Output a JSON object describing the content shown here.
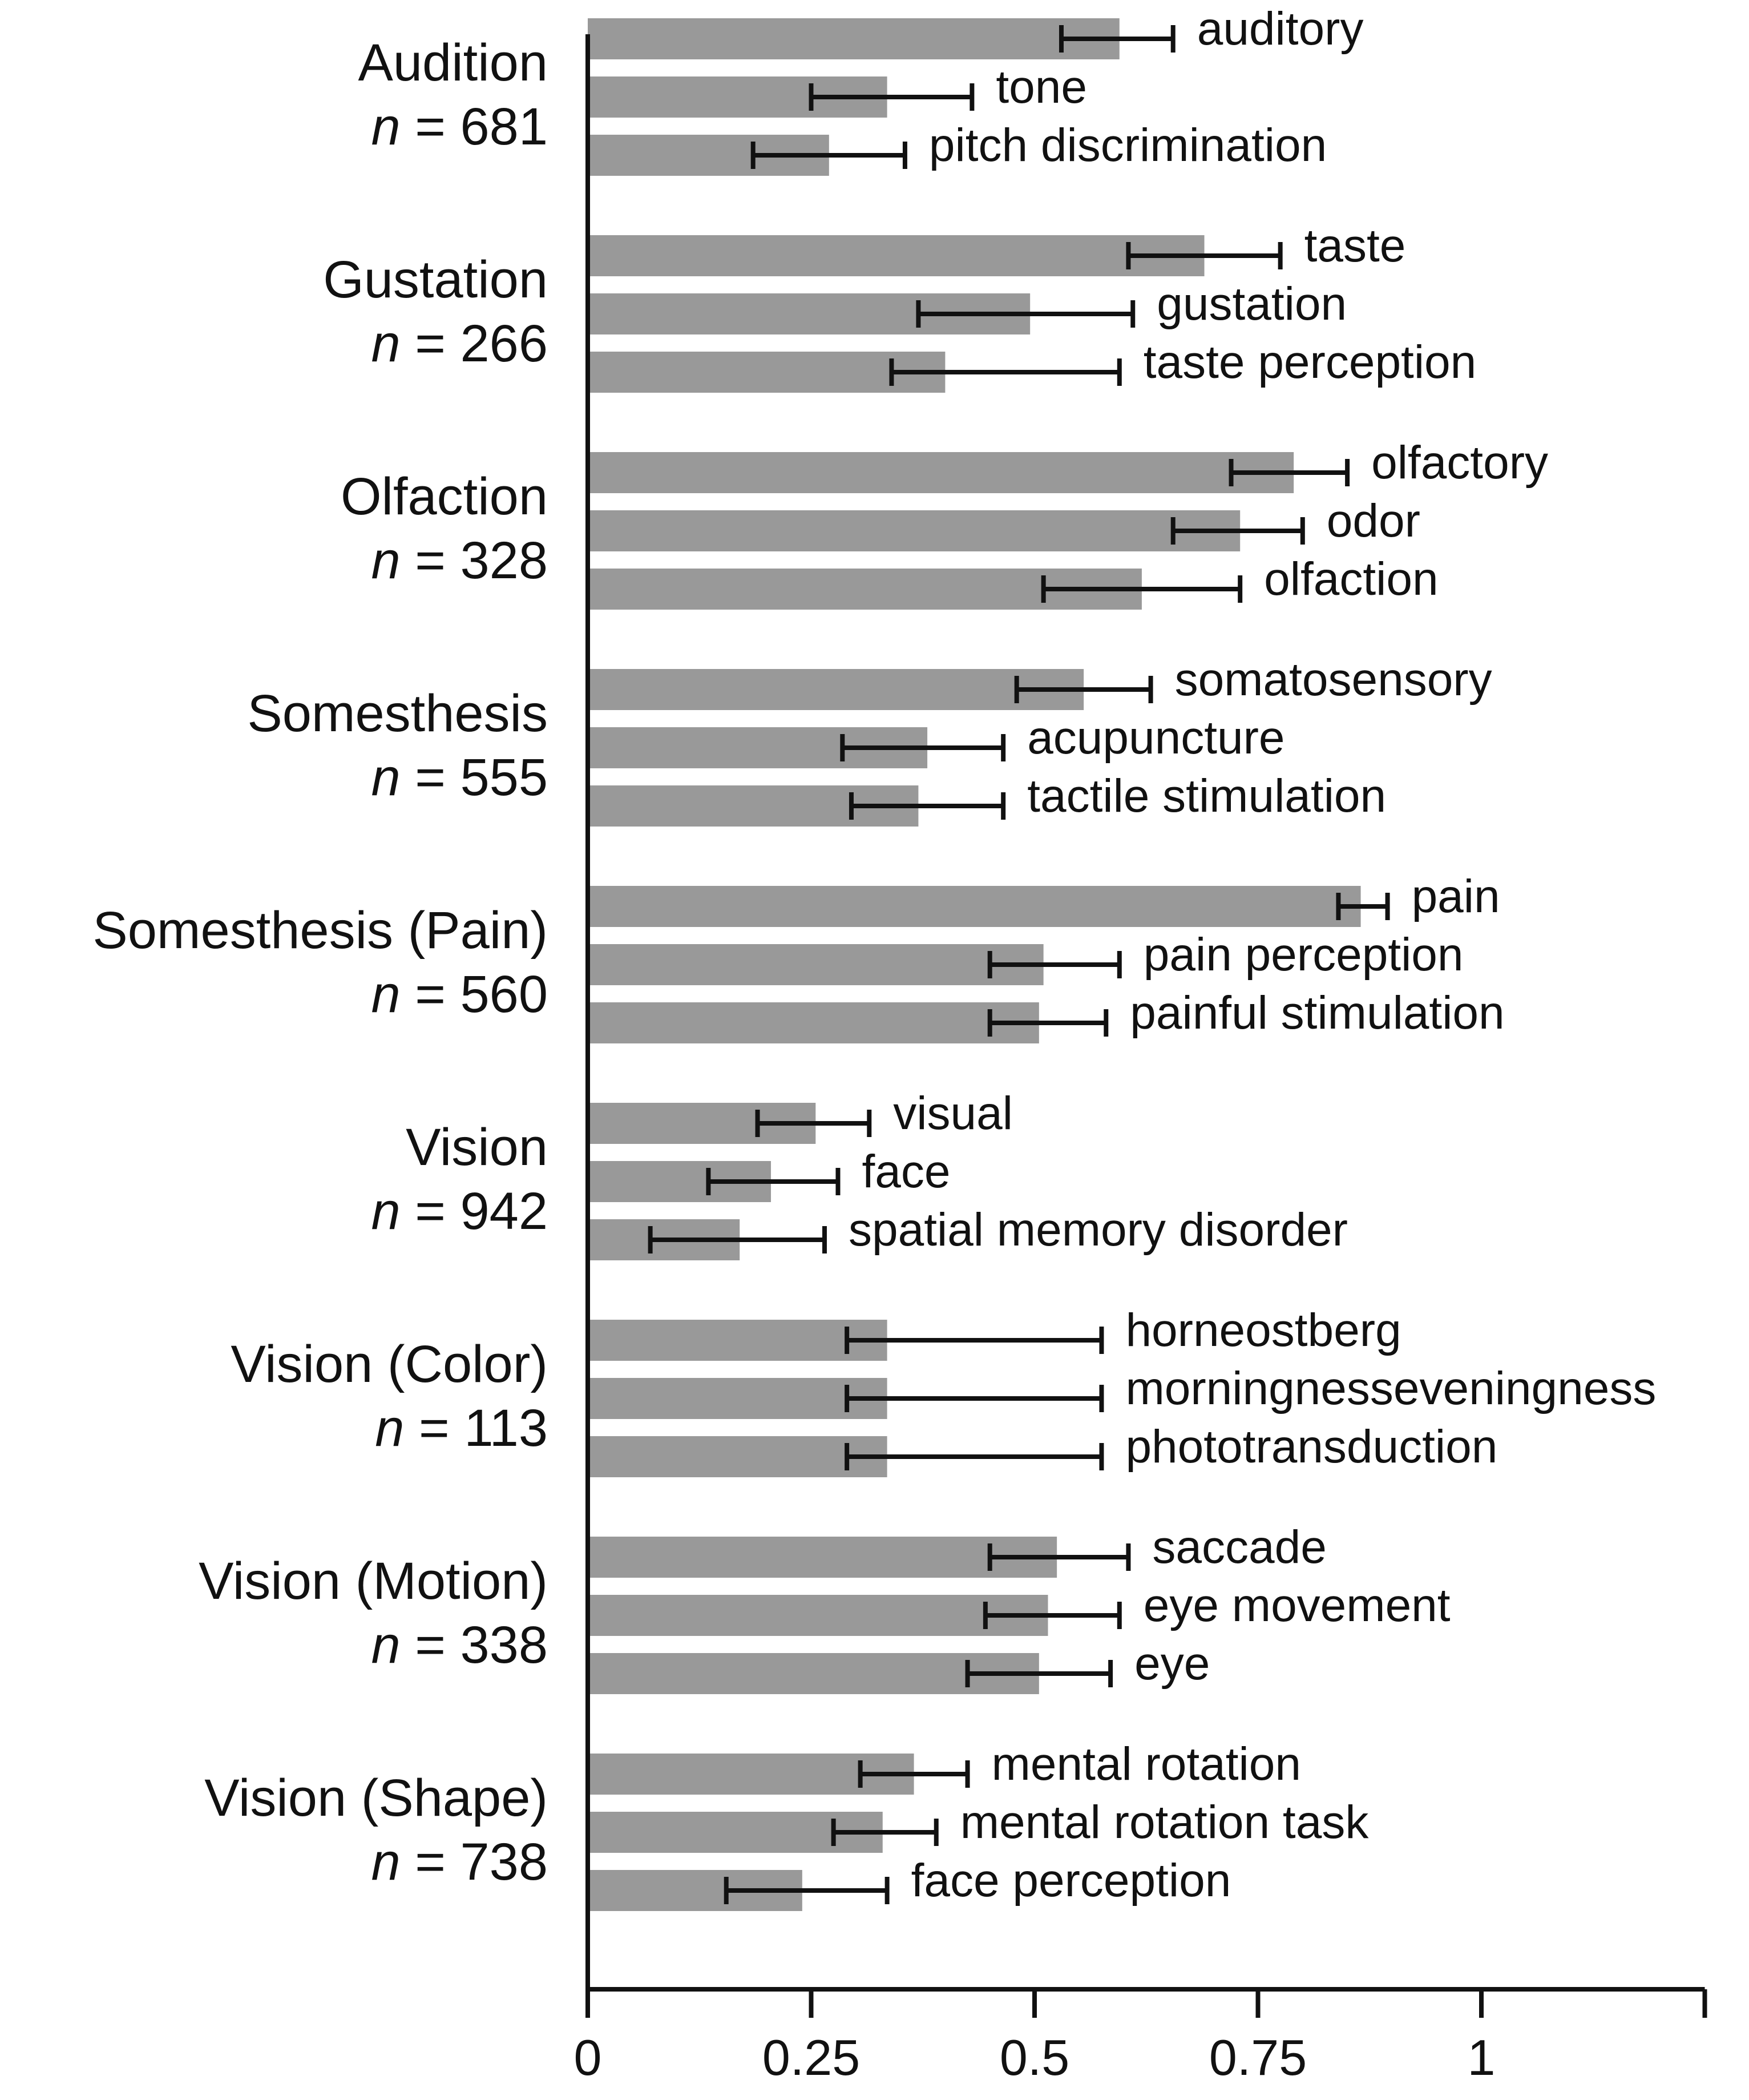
{
  "chart_data": {
    "type": "bar",
    "orientation": "horizontal",
    "error_bars": true,
    "xlim": [
      0,
      1.25
    ],
    "xticks": [
      "0",
      "0.25",
      "0.5",
      "0.75",
      "1"
    ],
    "xtick_values": [
      0,
      0.25,
      0.5,
      0.75,
      1
    ],
    "colors": {
      "bar": "#999999",
      "axis": "#111111",
      "error": "#111111"
    },
    "groups": [
      {
        "label": "Audition",
        "n_prefix": "n",
        "n_suffix": " = 681",
        "bars": [
          {
            "term": "auditory",
            "value": 0.595,
            "err_low": 0.53,
            "err_high": 0.655
          },
          {
            "term": "tone",
            "value": 0.335,
            "err_low": 0.25,
            "err_high": 0.43
          },
          {
            "term": "pitch discrimination",
            "value": 0.27,
            "err_low": 0.185,
            "err_high": 0.355
          }
        ]
      },
      {
        "label": "Gustation",
        "n_prefix": "n",
        "n_suffix": " = 266",
        "bars": [
          {
            "term": "taste",
            "value": 0.69,
            "err_low": 0.605,
            "err_high": 0.775
          },
          {
            "term": "gustation",
            "value": 0.495,
            "err_low": 0.37,
            "err_high": 0.61
          },
          {
            "term": "taste perception",
            "value": 0.4,
            "err_low": 0.34,
            "err_high": 0.595
          }
        ]
      },
      {
        "label": "Olfaction",
        "n_prefix": "n",
        "n_suffix": " = 328",
        "bars": [
          {
            "term": "olfactory",
            "value": 0.79,
            "err_low": 0.72,
            "err_high": 0.85
          },
          {
            "term": "odor",
            "value": 0.73,
            "err_low": 0.655,
            "err_high": 0.8
          },
          {
            "term": "olfaction",
            "value": 0.62,
            "err_low": 0.51,
            "err_high": 0.73
          }
        ]
      },
      {
        "label": "Somesthesis",
        "n_prefix": "n",
        "n_suffix": " = 555",
        "bars": [
          {
            "term": "somatosensory",
            "value": 0.555,
            "err_low": 0.48,
            "err_high": 0.63
          },
          {
            "term": "acupuncture",
            "value": 0.38,
            "err_low": 0.285,
            "err_high": 0.465
          },
          {
            "term": "tactile stimulation",
            "value": 0.37,
            "err_low": 0.295,
            "err_high": 0.465
          }
        ]
      },
      {
        "label": "Somesthesis (Pain)",
        "n_prefix": "n",
        "n_suffix": " = 560",
        "bars": [
          {
            "term": "pain",
            "value": 0.865,
            "err_low": 0.84,
            "err_high": 0.895
          },
          {
            "term": "pain perception",
            "value": 0.51,
            "err_low": 0.45,
            "err_high": 0.595
          },
          {
            "term": "painful stimulation",
            "value": 0.505,
            "err_low": 0.45,
            "err_high": 0.58
          }
        ]
      },
      {
        "label": "Vision",
        "n_prefix": "n",
        "n_suffix": " = 942",
        "bars": [
          {
            "term": "visual",
            "value": 0.255,
            "err_low": 0.19,
            "err_high": 0.315
          },
          {
            "term": "face",
            "value": 0.205,
            "err_low": 0.135,
            "err_high": 0.28
          },
          {
            "term": "spatial memory disorder",
            "value": 0.17,
            "err_low": 0.07,
            "err_high": 0.265
          }
        ]
      },
      {
        "label": "Vision (Color)",
        "n_prefix": "n",
        "n_suffix": " = 113",
        "bars": [
          {
            "term": "horneostberg",
            "value": 0.335,
            "err_low": 0.29,
            "err_high": 0.575
          },
          {
            "term": "morningnesseveningness",
            "value": 0.335,
            "err_low": 0.29,
            "err_high": 0.575
          },
          {
            "term": "phototransduction",
            "value": 0.335,
            "err_low": 0.29,
            "err_high": 0.575
          }
        ]
      },
      {
        "label": "Vision (Motion)",
        "n_prefix": "n",
        "n_suffix": " = 338",
        "bars": [
          {
            "term": "saccade",
            "value": 0.525,
            "err_low": 0.45,
            "err_high": 0.605
          },
          {
            "term": "eye movement",
            "value": 0.515,
            "err_low": 0.445,
            "err_high": 0.595
          },
          {
            "term": "eye",
            "value": 0.505,
            "err_low": 0.425,
            "err_high": 0.585
          }
        ]
      },
      {
        "label": "Vision (Shape)",
        "n_prefix": "n",
        "n_suffix": " = 738",
        "bars": [
          {
            "term": "mental rotation",
            "value": 0.365,
            "err_low": 0.305,
            "err_high": 0.425
          },
          {
            "term": "mental rotation task",
            "value": 0.33,
            "err_low": 0.275,
            "err_high": 0.39
          },
          {
            "term": "face perception",
            "value": 0.24,
            "err_low": 0.155,
            "err_high": 0.335
          }
        ]
      }
    ]
  }
}
